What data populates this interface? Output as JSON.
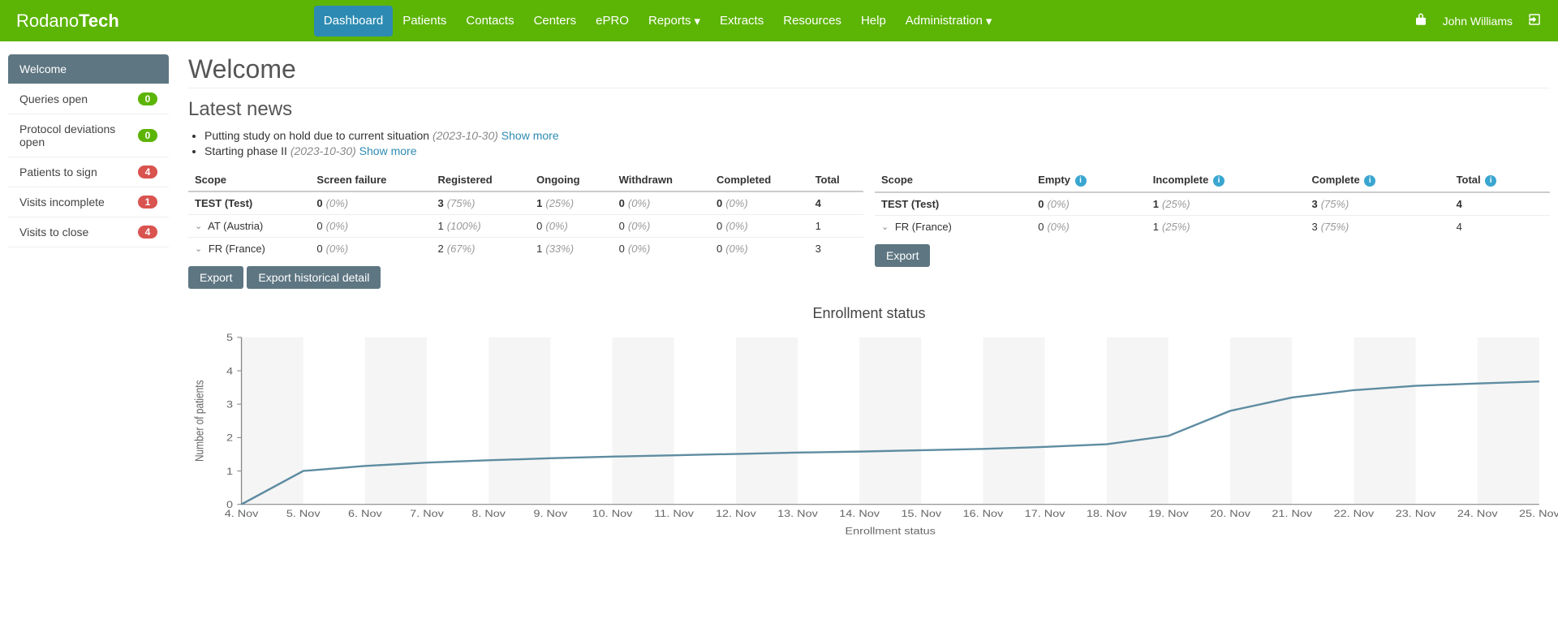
{
  "brand": {
    "pre": "Rodano",
    "bold": "Tech"
  },
  "nav": {
    "items": [
      {
        "label": "Dashboard",
        "active": true,
        "caret": false
      },
      {
        "label": "Patients",
        "active": false,
        "caret": false
      },
      {
        "label": "Contacts",
        "active": false,
        "caret": false
      },
      {
        "label": "Centers",
        "active": false,
        "caret": false
      },
      {
        "label": "ePRO",
        "active": false,
        "caret": false
      },
      {
        "label": "Reports",
        "active": false,
        "caret": true
      },
      {
        "label": "Extracts",
        "active": false,
        "caret": false
      },
      {
        "label": "Resources",
        "active": false,
        "caret": false
      },
      {
        "label": "Help",
        "active": false,
        "caret": false
      },
      {
        "label": "Administration",
        "active": false,
        "caret": true
      }
    ],
    "user": "John Williams"
  },
  "sidebar": {
    "items": [
      {
        "label": "Welcome",
        "badge": null,
        "active": true
      },
      {
        "label": "Queries open",
        "badge": {
          "text": "0",
          "color": "green"
        },
        "active": false
      },
      {
        "label": "Protocol deviations open",
        "badge": {
          "text": "0",
          "color": "green"
        },
        "active": false
      },
      {
        "label": "Patients to sign",
        "badge": {
          "text": "4",
          "color": "red"
        },
        "active": false
      },
      {
        "label": "Visits incomplete",
        "badge": {
          "text": "1",
          "color": "red"
        },
        "active": false
      },
      {
        "label": "Visits to close",
        "badge": {
          "text": "4",
          "color": "red"
        },
        "active": false
      }
    ]
  },
  "page_title": "Welcome",
  "latest_news": {
    "title": "Latest news",
    "items": [
      {
        "text": "Putting study on hold due to current situation",
        "date": "(2023-10-30)",
        "more": "Show more"
      },
      {
        "text": "Starting phase II",
        "date": "(2023-10-30)",
        "more": "Show more"
      }
    ]
  },
  "table_left": {
    "columns": [
      "Scope",
      "Screen failure",
      "Registered",
      "Ongoing",
      "Withdrawn",
      "Completed",
      "Total"
    ],
    "rows": [
      {
        "scope": "TEST (Test)",
        "bold": true,
        "expand": false,
        "cells": [
          {
            "v": "0",
            "p": "(0%)"
          },
          {
            "v": "3",
            "p": "(75%)"
          },
          {
            "v": "1",
            "p": "(25%)"
          },
          {
            "v": "0",
            "p": "(0%)"
          },
          {
            "v": "0",
            "p": "(0%)"
          },
          {
            "v": "4",
            "p": ""
          }
        ]
      },
      {
        "scope": "AT (Austria)",
        "bold": false,
        "expand": true,
        "cells": [
          {
            "v": "0",
            "p": "(0%)"
          },
          {
            "v": "1",
            "p": "(100%)"
          },
          {
            "v": "0",
            "p": "(0%)"
          },
          {
            "v": "0",
            "p": "(0%)"
          },
          {
            "v": "0",
            "p": "(0%)"
          },
          {
            "v": "1",
            "p": ""
          }
        ]
      },
      {
        "scope": "FR (France)",
        "bold": false,
        "expand": true,
        "cells": [
          {
            "v": "0",
            "p": "(0%)"
          },
          {
            "v": "2",
            "p": "(67%)"
          },
          {
            "v": "1",
            "p": "(33%)"
          },
          {
            "v": "0",
            "p": "(0%)"
          },
          {
            "v": "0",
            "p": "(0%)"
          },
          {
            "v": "3",
            "p": ""
          }
        ]
      }
    ],
    "buttons": [
      "Export",
      "Export historical detail"
    ]
  },
  "table_right": {
    "columns": [
      "Scope",
      "Empty",
      "Incomplete",
      "Complete",
      "Total"
    ],
    "info_icons": [
      false,
      true,
      true,
      true,
      true
    ],
    "rows": [
      {
        "scope": "TEST (Test)",
        "bold": true,
        "expand": false,
        "cells": [
          {
            "v": "0",
            "p": "(0%)"
          },
          {
            "v": "1",
            "p": "(25%)"
          },
          {
            "v": "3",
            "p": "(75%)"
          },
          {
            "v": "4",
            "p": ""
          }
        ]
      },
      {
        "scope": "FR (France)",
        "bold": false,
        "expand": true,
        "cells": [
          {
            "v": "0",
            "p": "(0%)"
          },
          {
            "v": "1",
            "p": "(25%)"
          },
          {
            "v": "3",
            "p": "(75%)"
          },
          {
            "v": "4",
            "p": ""
          }
        ]
      }
    ],
    "buttons": [
      "Export"
    ]
  },
  "chart": {
    "title": "Enrollment status",
    "type": "line",
    "ylabel": "Number of patients",
    "xlabel": "Enrollment status",
    "ylim": [
      0,
      5
    ],
    "ytick_step": 1,
    "x_categories": [
      "4. Nov",
      "5. Nov",
      "6. Nov",
      "7. Nov",
      "8. Nov",
      "9. Nov",
      "10. Nov",
      "11. Nov",
      "12. Nov",
      "13. Nov",
      "14. Nov",
      "15. Nov",
      "16. Nov",
      "17. Nov",
      "18. Nov",
      "19. Nov",
      "20. Nov",
      "21. Nov",
      "22. Nov",
      "23. Nov",
      "24. Nov",
      "25. Nov"
    ],
    "x_index": [
      0,
      1,
      2,
      3,
      4,
      5,
      6,
      7,
      8,
      9,
      10,
      11,
      12,
      13,
      14,
      15,
      16,
      17,
      18,
      19,
      20,
      21
    ],
    "y_values": [
      0,
      1.0,
      1.15,
      1.25,
      1.32,
      1.38,
      1.43,
      1.47,
      1.51,
      1.55,
      1.58,
      1.62,
      1.66,
      1.72,
      1.8,
      2.05,
      2.8,
      3.2,
      3.42,
      3.55,
      3.62,
      3.68
    ],
    "line_color": "#5e8ca1",
    "band_color": "#f5f5f5",
    "axis_color": "#888888",
    "tick_fontsize": 11,
    "background": "#ffffff"
  }
}
